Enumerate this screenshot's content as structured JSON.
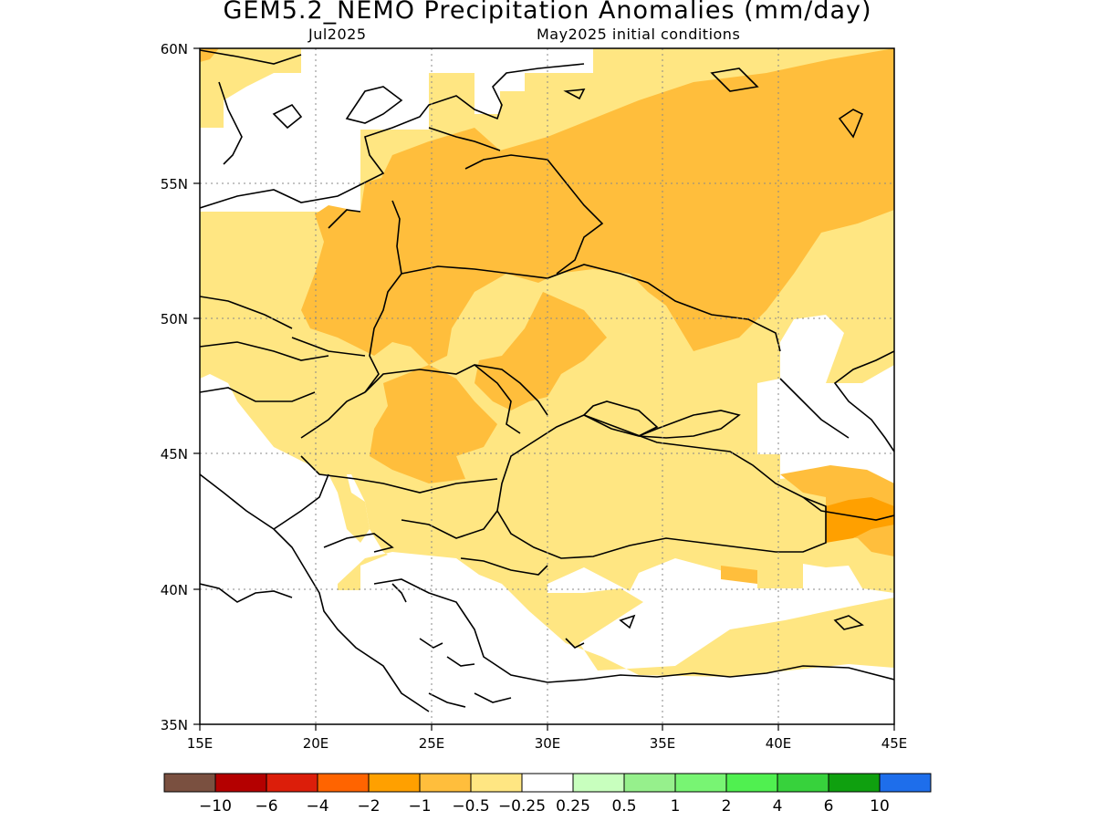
{
  "title": "GEM5.2_NEMO Precipitation Anomalies (mm/day)",
  "subtitle_left": "Jul2025",
  "subtitle_right": "May2025 initial conditions",
  "lat_ticks": [
    "60N",
    "55N",
    "50N",
    "45N",
    "40N",
    "35N"
  ],
  "lon_ticks": [
    "15E",
    "20E",
    "25E",
    "30E",
    "35E",
    "40E",
    "45E"
  ],
  "colorbar": {
    "colors": [
      "#7a5040",
      "#b40000",
      "#dc1e0a",
      "#ff6400",
      "#ffa000",
      "#ffbe3c",
      "#ffe682",
      "#ffffff",
      "#c8ffbe",
      "#96f08c",
      "#78f573",
      "#50f050",
      "#37d23c",
      "#0fa00f",
      "#1e6eeb"
    ],
    "labels": [
      "−10",
      "−6",
      "−4",
      "−2",
      "−1",
      "−0.5",
      "−0.25",
      "0.25",
      "0.5",
      "1",
      "2",
      "4",
      "6",
      "10"
    ]
  },
  "anomaly_colors": {
    "weak_dry": "#ffe682",
    "moderate_dry": "#ffbe3c",
    "strong_dry": "#ffa000"
  }
}
